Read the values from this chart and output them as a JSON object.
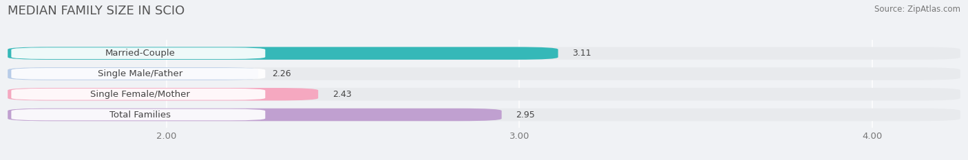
{
  "title": "MEDIAN FAMILY SIZE IN SCIO",
  "source": "Source: ZipAtlas.com",
  "categories": [
    "Married-Couple",
    "Single Male/Father",
    "Single Female/Mother",
    "Total Families"
  ],
  "values": [
    3.11,
    2.26,
    2.43,
    2.95
  ],
  "bar_colors": [
    "#35b8b8",
    "#b8cce8",
    "#f5a8c0",
    "#c0a0d0"
  ],
  "xlim": [
    1.55,
    4.25
  ],
  "xmin": 1.55,
  "xmax": 4.25,
  "xticks": [
    2.0,
    3.0,
    4.0
  ],
  "xtick_labels": [
    "2.00",
    "3.00",
    "4.00"
  ],
  "background_color": "#f0f2f5",
  "bar_bg_color": "#e8eaed",
  "title_fontsize": 13,
  "label_fontsize": 9.5,
  "value_fontsize": 9,
  "source_fontsize": 8.5,
  "bar_height": 0.62
}
